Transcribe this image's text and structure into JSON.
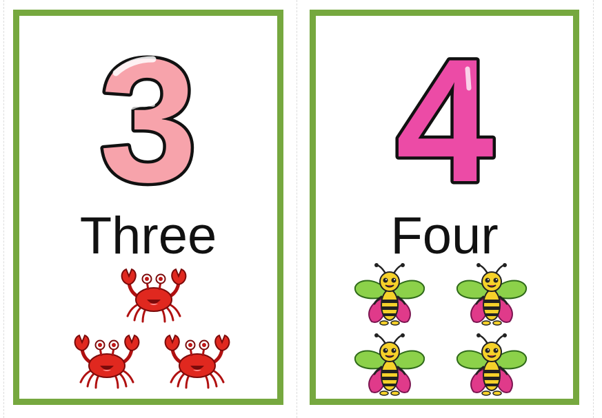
{
  "cards": [
    {
      "numeral": "3",
      "word": "Three",
      "picture": "crab-icon",
      "count": 3,
      "numeral_color": "#f7a3ab",
      "numeral_shade": "#f08c98"
    },
    {
      "numeral": "4",
      "word": "Four",
      "picture": "bee-icon",
      "count": 4,
      "numeral_color": "#ec4ba6",
      "numeral_shade": "#d43a92"
    }
  ],
  "colors": {
    "card_border": "#76a83f",
    "background": "#ffffff",
    "text": "#111111"
  }
}
